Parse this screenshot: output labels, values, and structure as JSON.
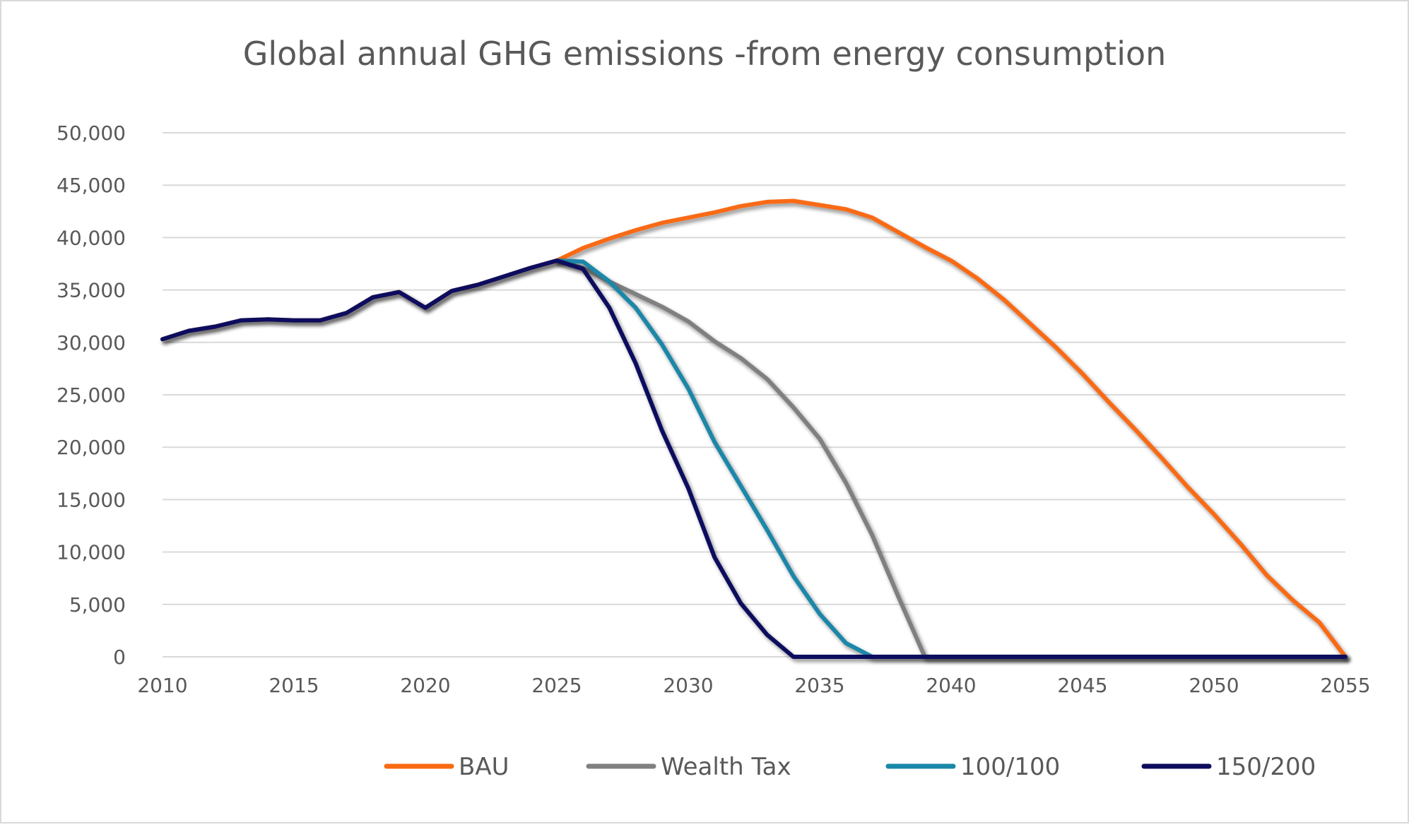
{
  "chart_data": {
    "type": "line",
    "title": "Global annual GHG emissions -from energy consumption",
    "xlabel": "",
    "ylabel": "",
    "xlim": [
      2010,
      2055
    ],
    "ylim": [
      0,
      50000
    ],
    "x_ticks": [
      2010,
      2015,
      2020,
      2025,
      2030,
      2035,
      2040,
      2045,
      2050,
      2055
    ],
    "y_ticks": [
      0,
      5000,
      10000,
      15000,
      20000,
      25000,
      30000,
      35000,
      40000,
      45000,
      50000
    ],
    "y_tick_labels": [
      "0",
      "5,000",
      "10,000",
      "15,000",
      "20,000",
      "25,000",
      "30,000",
      "35,000",
      "40,000",
      "45,000",
      "50,000"
    ],
    "grid": "horizontal",
    "legend_position": "bottom",
    "series": [
      {
        "name": "BAU",
        "color": "#F96B12",
        "x": [
          2010,
          2011,
          2012,
          2013,
          2014,
          2015,
          2016,
          2017,
          2018,
          2019,
          2020,
          2021,
          2022,
          2023,
          2024,
          2025,
          2026,
          2027,
          2028,
          2029,
          2030,
          2031,
          2032,
          2033,
          2034,
          2035,
          2036,
          2037,
          2038,
          2039,
          2040,
          2041,
          2042,
          2043,
          2044,
          2045,
          2046,
          2047,
          2048,
          2049,
          2050,
          2051,
          2052,
          2053,
          2054,
          2055
        ],
        "values": [
          30300,
          31100,
          31500,
          32100,
          32200,
          32100,
          32100,
          32800,
          34300,
          34800,
          33300,
          34900,
          35500,
          36300,
          37100,
          37800,
          39000,
          39900,
          40700,
          41400,
          41900,
          42400,
          43000,
          43400,
          43500,
          43100,
          42700,
          41900,
          40500,
          39100,
          37800,
          36100,
          34100,
          31800,
          29500,
          27000,
          24300,
          21700,
          19000,
          16200,
          13600,
          10800,
          7800,
          5400,
          3300,
          0
        ]
      },
      {
        "name": "Wealth Tax",
        "color": "#808080",
        "x": [
          2025,
          2026,
          2027,
          2028,
          2029,
          2030,
          2031,
          2032,
          2033,
          2034,
          2035,
          2036,
          2037,
          2038,
          2039,
          2040,
          2041,
          2042,
          2043,
          2044,
          2045,
          2046,
          2047,
          2048,
          2049,
          2050,
          2051,
          2052,
          2053,
          2054,
          2055
        ],
        "values": [
          37800,
          37100,
          35800,
          34600,
          33400,
          32000,
          30100,
          28500,
          26500,
          23800,
          20800,
          16600,
          11600,
          5700,
          0,
          0,
          0,
          0,
          0,
          0,
          0,
          0,
          0,
          0,
          0,
          0,
          0,
          0,
          0,
          0,
          0
        ]
      },
      {
        "name": "100/100",
        "color": "#1A87A8",
        "x": [
          2025,
          2026,
          2027,
          2028,
          2029,
          2030,
          2031,
          2032,
          2033,
          2034,
          2035,
          2036,
          2037,
          2038,
          2039,
          2040,
          2041,
          2042,
          2043,
          2044,
          2045,
          2046,
          2047,
          2048,
          2049,
          2050,
          2051,
          2052,
          2053,
          2054,
          2055
        ],
        "values": [
          37800,
          37700,
          35800,
          33300,
          29800,
          25600,
          20500,
          16300,
          12100,
          7700,
          4100,
          1300,
          0,
          0,
          0,
          0,
          0,
          0,
          0,
          0,
          0,
          0,
          0,
          0,
          0,
          0,
          0,
          0,
          0,
          0,
          0
        ]
      },
      {
        "name": "150/200",
        "color": "#0D0D5E",
        "x": [
          2010,
          2011,
          2012,
          2013,
          2014,
          2015,
          2016,
          2017,
          2018,
          2019,
          2020,
          2021,
          2022,
          2023,
          2024,
          2025,
          2026,
          2027,
          2028,
          2029,
          2030,
          2031,
          2032,
          2033,
          2034,
          2035,
          2036,
          2037,
          2038,
          2039,
          2040,
          2041,
          2042,
          2043,
          2044,
          2045,
          2046,
          2047,
          2048,
          2049,
          2050,
          2051,
          2052,
          2053,
          2054,
          2055
        ],
        "values": [
          30300,
          31100,
          31500,
          32100,
          32200,
          32100,
          32100,
          32800,
          34300,
          34800,
          33300,
          34900,
          35500,
          36300,
          37100,
          37800,
          37000,
          33300,
          28000,
          21600,
          16100,
          9500,
          5100,
          2100,
          0,
          0,
          0,
          0,
          0,
          0,
          0,
          0,
          0,
          0,
          0,
          0,
          0,
          0,
          0,
          0,
          0,
          0,
          0,
          0,
          0,
          0
        ]
      }
    ]
  }
}
